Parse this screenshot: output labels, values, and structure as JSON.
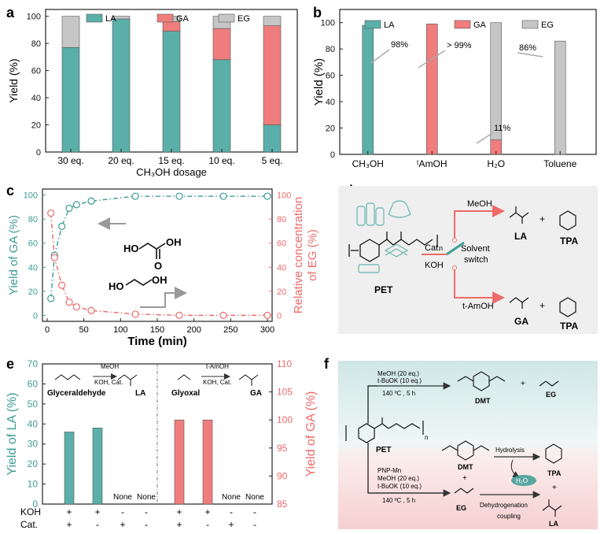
{
  "colors": {
    "LA": "#5ab0a9",
    "GA": "#f07d7d",
    "EG": "#c6c6c6",
    "axis": "#222222",
    "teal": "#3c9c94",
    "red": "#ee6a6a",
    "panel_d_bg": "#efefef",
    "panel_f_top": "#cfe7e6",
    "panel_f_bottom": "#f6d4d4"
  },
  "panels": {
    "a": "a",
    "b": "b",
    "c": "c",
    "d": "d",
    "e": "e",
    "f": "f"
  },
  "legend": {
    "LA": "LA",
    "GA": "GA",
    "EG": "EG"
  },
  "chart_data": [
    {
      "id": "a",
      "type": "bar",
      "stacked": true,
      "categories": [
        "30 eq.",
        "20 eq.",
        "15 eq.",
        "10 eq.",
        "5 eq."
      ],
      "series": [
        {
          "name": "LA",
          "values": [
            77,
            98,
            89,
            68,
            20
          ]
        },
        {
          "name": "GA",
          "values": [
            0,
            0,
            7,
            23,
            73
          ]
        },
        {
          "name": "EG",
          "values": [
            23,
            2,
            4,
            9,
            7
          ]
        }
      ],
      "xlabel": "CH₃OH dosage",
      "ylabel": "Yield (%)",
      "ylim": [
        0,
        105
      ],
      "yticks": [
        "0",
        "20",
        "40",
        "60",
        "80",
        "100"
      ],
      "legend_position": "top"
    },
    {
      "id": "b",
      "type": "bar",
      "categories": [
        "CH₃OH",
        "ᵗAmOH",
        "H₂O",
        "Toluene"
      ],
      "series": [
        {
          "name": "LA",
          "values": [
            98,
            0,
            0,
            0
          ]
        },
        {
          "name": "GA",
          "values": [
            0,
            99,
            11,
            0
          ]
        },
        {
          "name": "EG",
          "values": [
            0,
            0,
            89,
            86
          ]
        }
      ],
      "annotations": [
        "98%",
        "> 99%",
        "11%",
        "86%"
      ],
      "ylabel": "Yield (%)",
      "ylim": [
        0,
        110
      ],
      "yticks": [
        "0",
        "20",
        "40",
        "60",
        "80",
        "100"
      ],
      "legend_position": "top"
    },
    {
      "id": "c",
      "type": "line",
      "series": [
        {
          "name": "Yield of GA (%)",
          "x": [
            5,
            10,
            20,
            30,
            40,
            60,
            120,
            180,
            240,
            300
          ],
          "y": [
            14,
            50,
            74,
            89,
            92,
            95,
            99,
            99,
            99,
            99
          ]
        },
        {
          "name": "Relative concentration of EG (%)",
          "x": [
            5,
            10,
            20,
            30,
            40,
            60,
            120,
            180,
            240,
            300
          ],
          "y": [
            85,
            48,
            25,
            11,
            7,
            4,
            1,
            0,
            0,
            0
          ]
        }
      ],
      "xlabel": "Time (min)",
      "ylabel": "Yield of GA (%)",
      "ylabel_right": "Relative concentration of EG (%)",
      "xlim": [
        0,
        300
      ],
      "ylim": [
        -5,
        105
      ],
      "xticks": [
        "0",
        "50",
        "100",
        "150",
        "200",
        "250",
        "300"
      ],
      "yticks": [
        "0",
        "20",
        "40",
        "60",
        "80",
        "100"
      ]
    },
    {
      "id": "e",
      "type": "bar",
      "groups": [
        {
          "name": "LA",
          "axis": "left",
          "values": [
            36,
            38,
            null,
            null
          ],
          "missing_label": "None"
        },
        {
          "name": "GA",
          "axis": "right",
          "values": [
            100,
            100,
            null,
            null
          ],
          "missing_label": "None"
        }
      ],
      "conditions": {
        "KOH": [
          "+",
          "+",
          "-",
          "-",
          "+",
          "+",
          "-",
          "-"
        ],
        "Cat.": [
          "+",
          "-",
          "+",
          "-",
          "+",
          "-",
          "+",
          "-"
        ]
      },
      "ylabel": "Yield of LA (%)",
      "ylim": [
        0,
        70
      ],
      "yticks": [
        "0",
        "10",
        "20",
        "30",
        "40",
        "50",
        "60",
        "70"
      ],
      "ylabel_right": "Yield of GA (%)",
      "ylim_right": [
        85,
        110
      ],
      "yticks_right": [
        "85",
        "90",
        "95",
        "100",
        "105",
        "110"
      ]
    }
  ],
  "labels_c": {
    "ga_legend": "HO",
    "ga_o": "OH",
    "ga_carbonyl": "O",
    "eg_ho": "HO",
    "eg_oh": "OH"
  },
  "row_labels_e": {
    "koh": "KOH",
    "cat": "Cat."
  },
  "panel_e_text": {
    "glyceraldehyde": "Glyceraldehyde",
    "la": "LA",
    "glyoxal": "Glyoxal",
    "ga": "GA",
    "meoh": "MeOH",
    "koh_cat": "KOH, Cat.",
    "tamoh": "t-AmOH",
    "koh_cat2": "KOH, Cat.",
    "oh": "OH",
    "o": "O"
  },
  "panel_d_text": {
    "pet": "PET",
    "cat": "Cat.",
    "koh": "KOH",
    "meoh": "MeOH",
    "solvent": "Solvent",
    "switch": "switch",
    "la": "LA",
    "tpa1": "TPA",
    "tamoh": "t-AmOH",
    "ga": "GA",
    "tpa2": "TPA",
    "plus1": "+",
    "plus2": "+",
    "n": "n"
  },
  "panel_f_text": {
    "top_cond1": "MeOH (20 eq.)",
    "top_cond2": "t-BuOK (10 eq.)",
    "top_cond3": "140 ºC , 5 h",
    "dmt_top": "DMT",
    "eg_top": "EG",
    "plus_top": "+",
    "pet": "PET",
    "n": "n",
    "bot_cond0": "PNP-Mn",
    "bot_cond1": "MeOH (20 eq.)",
    "bot_cond2": "t-BuOK (10 eq.)",
    "bot_cond3": "140 ºC , 5 h",
    "dmt_bot": "DMT",
    "eg_bot": "EG",
    "plus_bot": "+",
    "hydrolysis": "Hydrolysis",
    "h2o": "H₂O",
    "dehydro": "Dehydrogenation",
    "coupling": "coupling",
    "tpa": "TPA",
    "la": "LA",
    "plus_right": "+"
  }
}
